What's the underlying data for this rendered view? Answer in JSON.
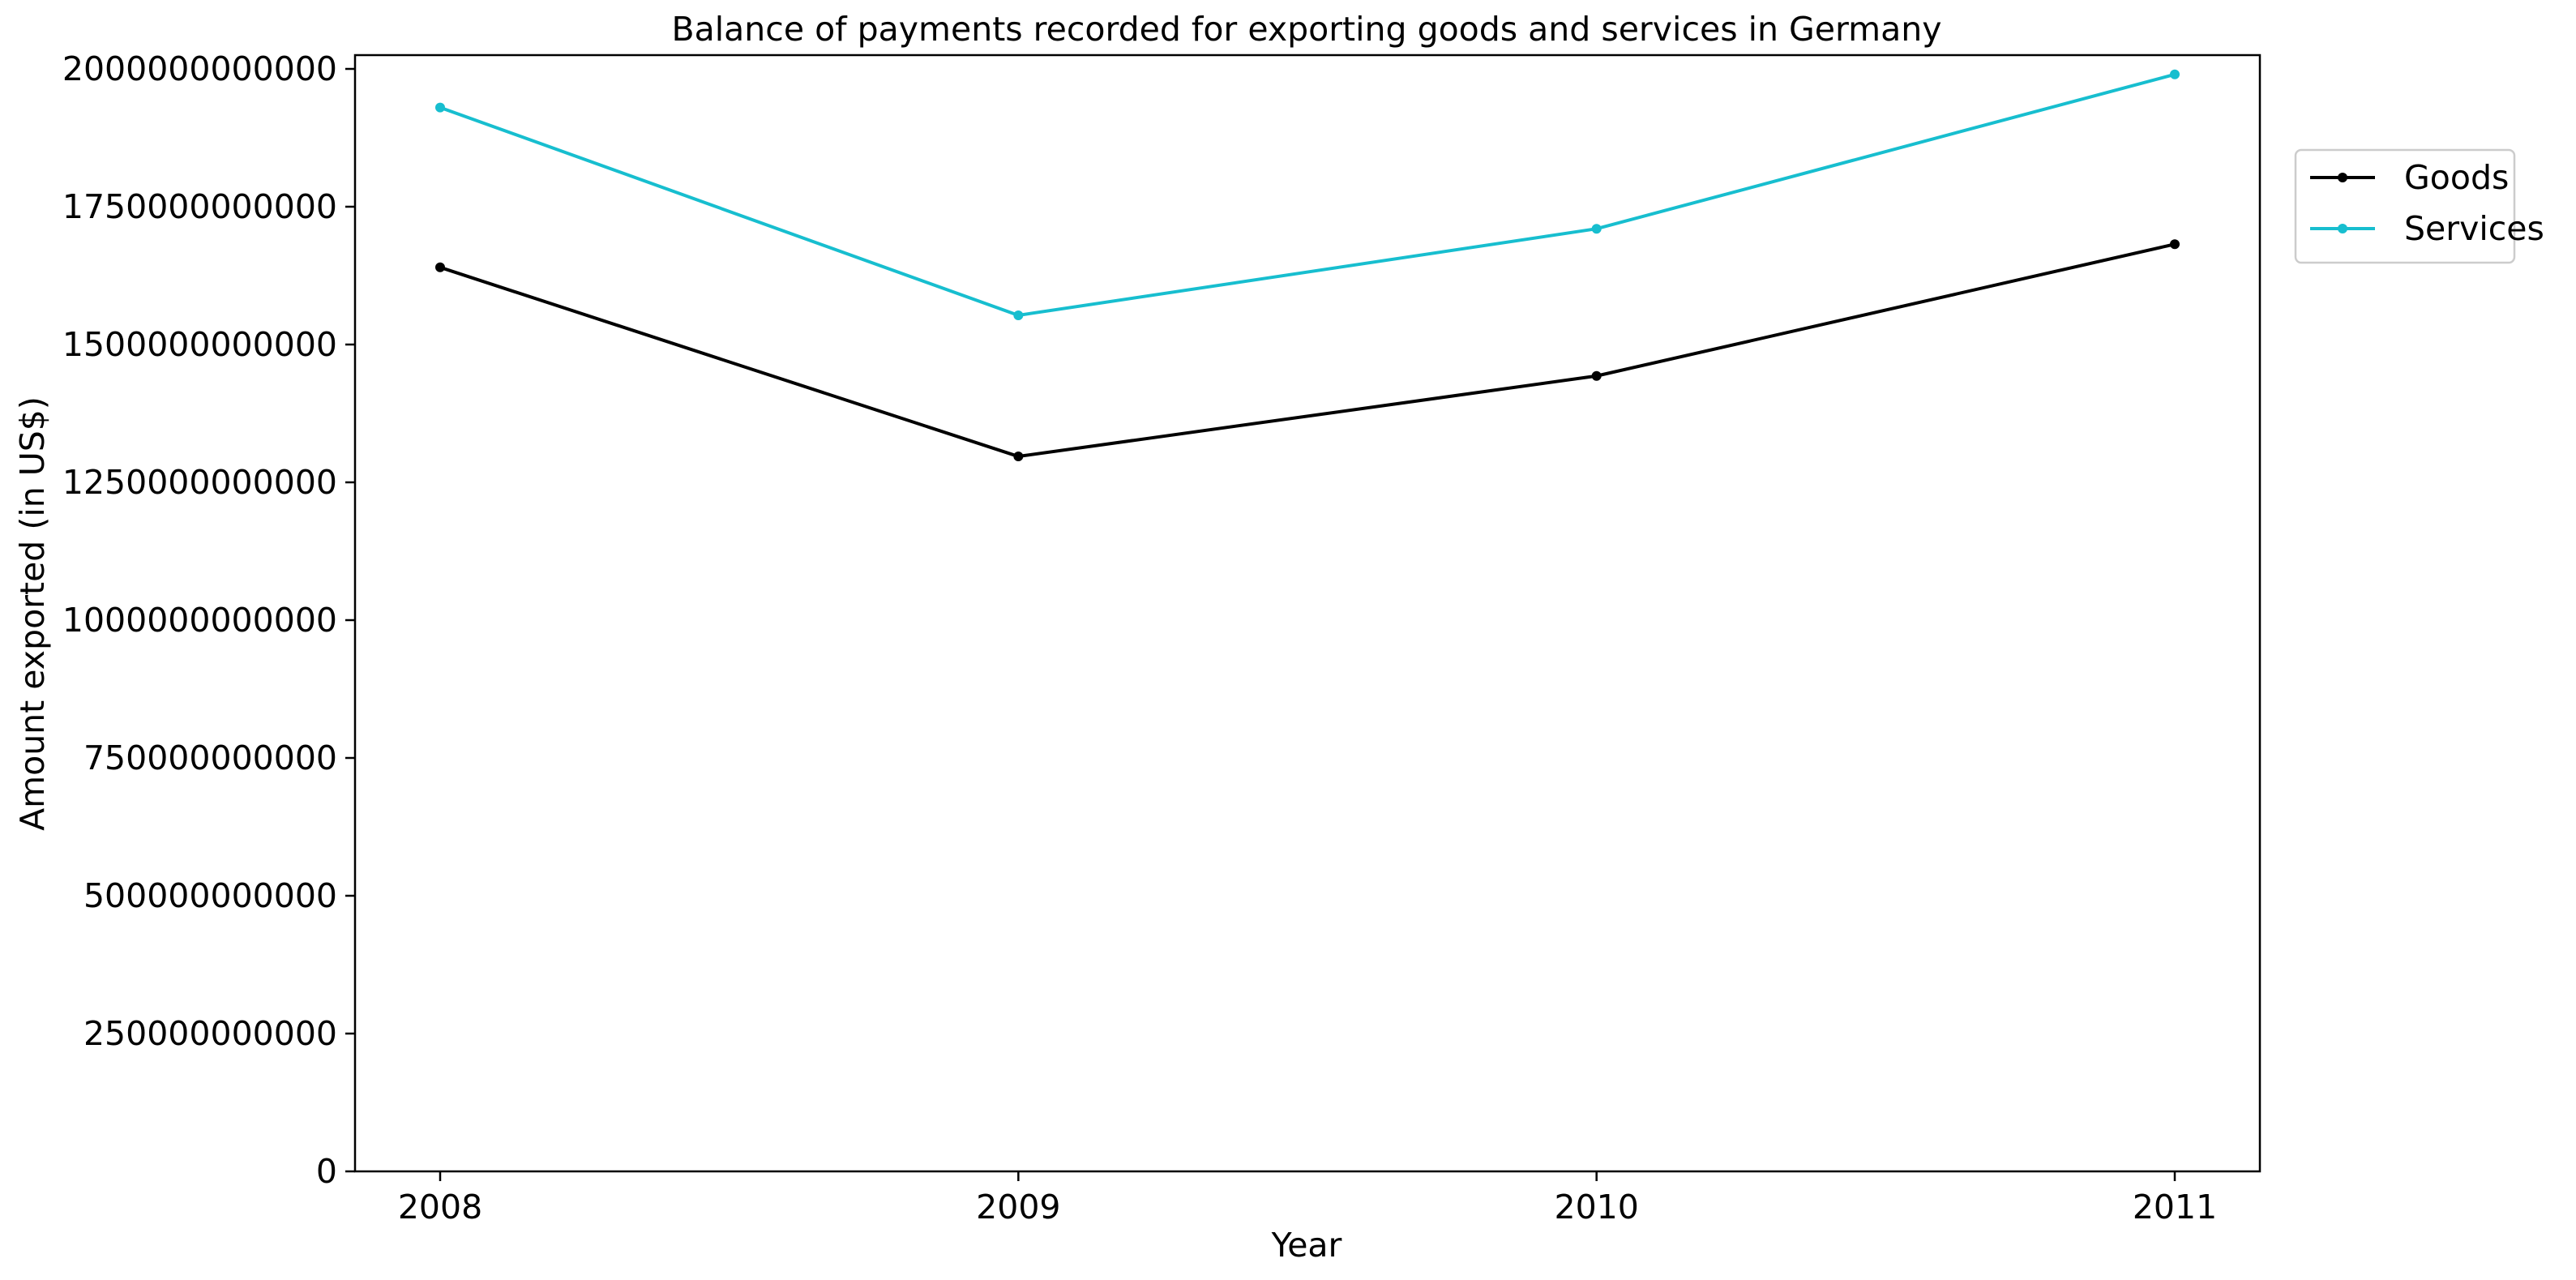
{
  "chart_data": {
    "type": "line",
    "title": "Balance of payments recorded for exporting goods and services in Germany",
    "xlabel": "Year",
    "ylabel": "Amount exported (in US$)",
    "x": [
      "2008",
      "2009",
      "2010",
      "2011"
    ],
    "y_ticks": [
      "0",
      "250000000000",
      "500000000000",
      "750000000000",
      "1000000000000",
      "1250000000000",
      "1500000000000",
      "1750000000000",
      "2000000000000"
    ],
    "ylim": [
      0,
      2025000000000
    ],
    "grid": false,
    "legend_position": "upper-right-outside",
    "series": [
      {
        "name": "Goods",
        "color": "#000000",
        "values": [
          1640000000000,
          1297000000000,
          1443000000000,
          1682000000000
        ]
      },
      {
        "name": "Services",
        "color": "#17becf",
        "values": [
          1930000000000,
          1553000000000,
          1710000000000,
          1990000000000
        ]
      }
    ]
  }
}
